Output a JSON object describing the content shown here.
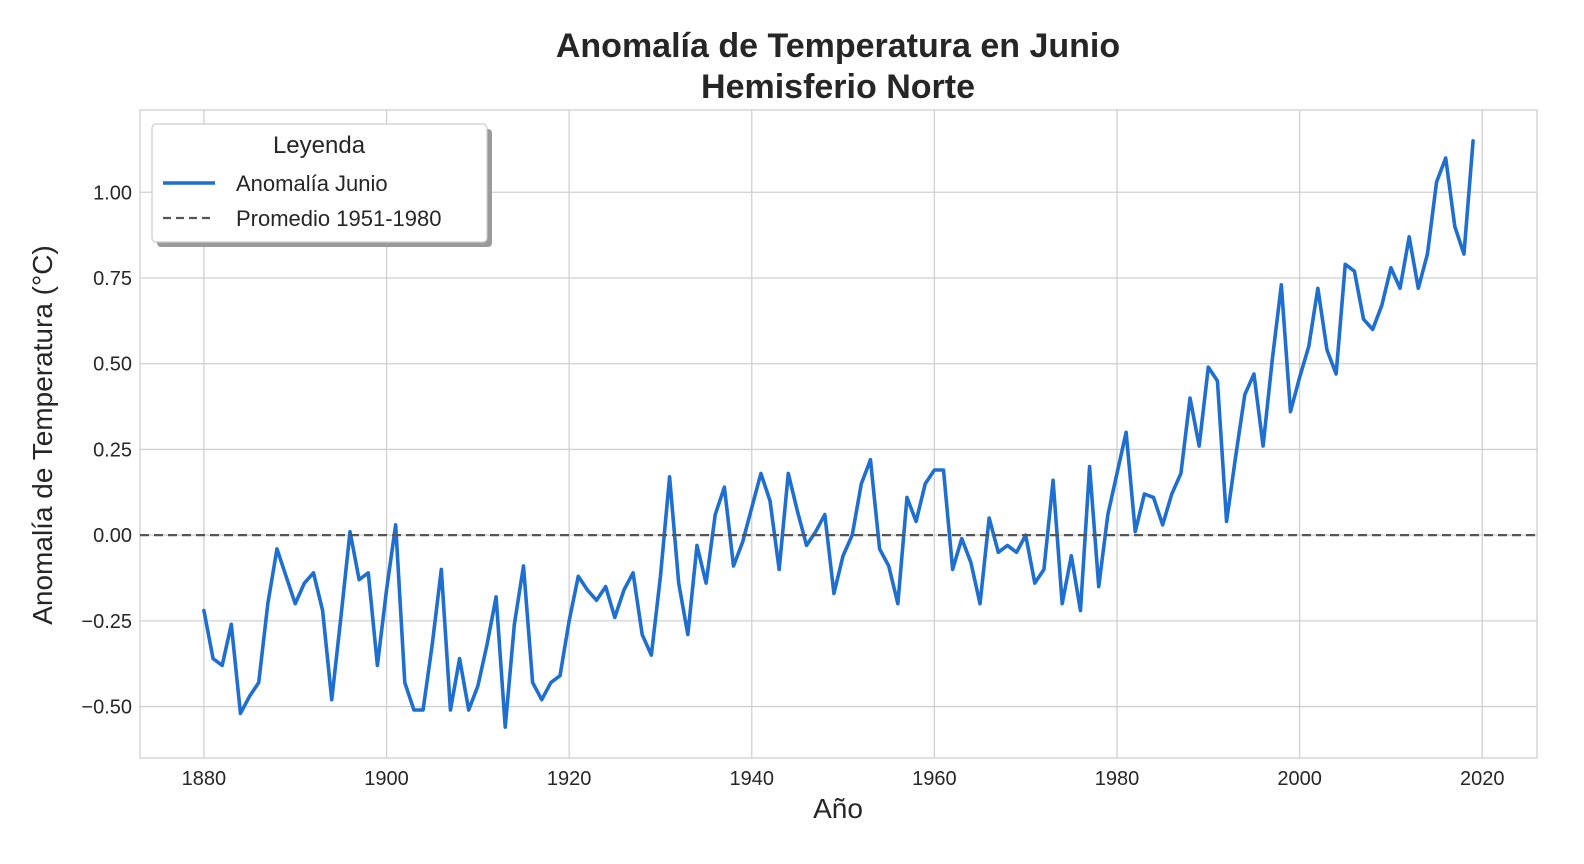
{
  "chart_data": {
    "type": "line",
    "title_line1": "Anomalía de Temperatura en Junio",
    "title_line2": "Hemisferio Norte",
    "xlabel": "Año",
    "ylabel": "Anomalía de Temperatura (°C)",
    "xlim": [
      1873,
      2026
    ],
    "ylim": [
      -0.65,
      1.24
    ],
    "x_ticks": [
      1880,
      1900,
      1920,
      1940,
      1960,
      1980,
      2000,
      2020
    ],
    "y_ticks": [
      -0.5,
      -0.25,
      0.0,
      0.25,
      0.5,
      0.75,
      1.0
    ],
    "y_tick_labels": [
      "−0.50",
      "−0.25",
      "0.00",
      "0.25",
      "0.50",
      "0.75",
      "1.00"
    ],
    "grid": true,
    "legend": {
      "title": "Leyenda",
      "placement": "upper-left",
      "entries": [
        "Anomalía Junio",
        "Promedio 1951-1980"
      ]
    },
    "series": [
      {
        "name": "Anomalía Junio",
        "color": "#1f6fd1",
        "x_start": 1880,
        "values": [
          -0.22,
          -0.36,
          -0.38,
          -0.26,
          -0.52,
          -0.47,
          -0.43,
          -0.2,
          -0.04,
          -0.12,
          -0.2,
          -0.14,
          -0.11,
          -0.22,
          -0.48,
          -0.24,
          0.01,
          -0.13,
          -0.11,
          -0.38,
          -0.16,
          0.03,
          -0.43,
          -0.51,
          -0.51,
          -0.32,
          -0.1,
          -0.51,
          -0.36,
          -0.51,
          -0.44,
          -0.32,
          -0.18,
          -0.56,
          -0.26,
          -0.09,
          -0.43,
          -0.48,
          -0.43,
          -0.41,
          -0.25,
          -0.12,
          -0.16,
          -0.19,
          -0.15,
          -0.24,
          -0.16,
          -0.11,
          -0.29,
          -0.35,
          -0.12,
          0.17,
          -0.14,
          -0.29,
          -0.03,
          -0.14,
          0.06,
          0.14,
          -0.09,
          -0.02,
          0.08,
          0.18,
          0.1,
          -0.1,
          0.18,
          0.07,
          -0.03,
          0.01,
          0.06,
          -0.17,
          -0.06,
          0.0,
          0.15,
          0.22,
          -0.04,
          -0.09,
          -0.2,
          0.11,
          0.04,
          0.15,
          0.19,
          0.19,
          -0.1,
          -0.01,
          -0.08,
          -0.2,
          0.05,
          -0.05,
          -0.03,
          -0.05,
          0.0,
          -0.14,
          -0.1,
          0.16,
          -0.2,
          -0.06,
          -0.22,
          0.2,
          -0.15,
          0.06,
          0.18,
          0.3,
          0.01,
          0.12,
          0.11,
          0.03,
          0.12,
          0.18,
          0.4,
          0.26,
          0.49,
          0.45,
          0.04,
          0.23,
          0.41,
          0.47,
          0.26,
          0.51,
          0.73,
          0.36,
          0.46,
          0.55,
          0.72,
          0.54,
          0.47,
          0.79,
          0.77,
          0.63,
          0.6,
          0.67,
          0.78,
          0.72,
          0.87,
          0.72,
          0.82,
          1.03,
          1.1,
          0.9,
          0.82,
          1.15
        ]
      },
      {
        "name": "Promedio 1951-1980",
        "color": "#555555",
        "y": 0.0
      }
    ]
  }
}
